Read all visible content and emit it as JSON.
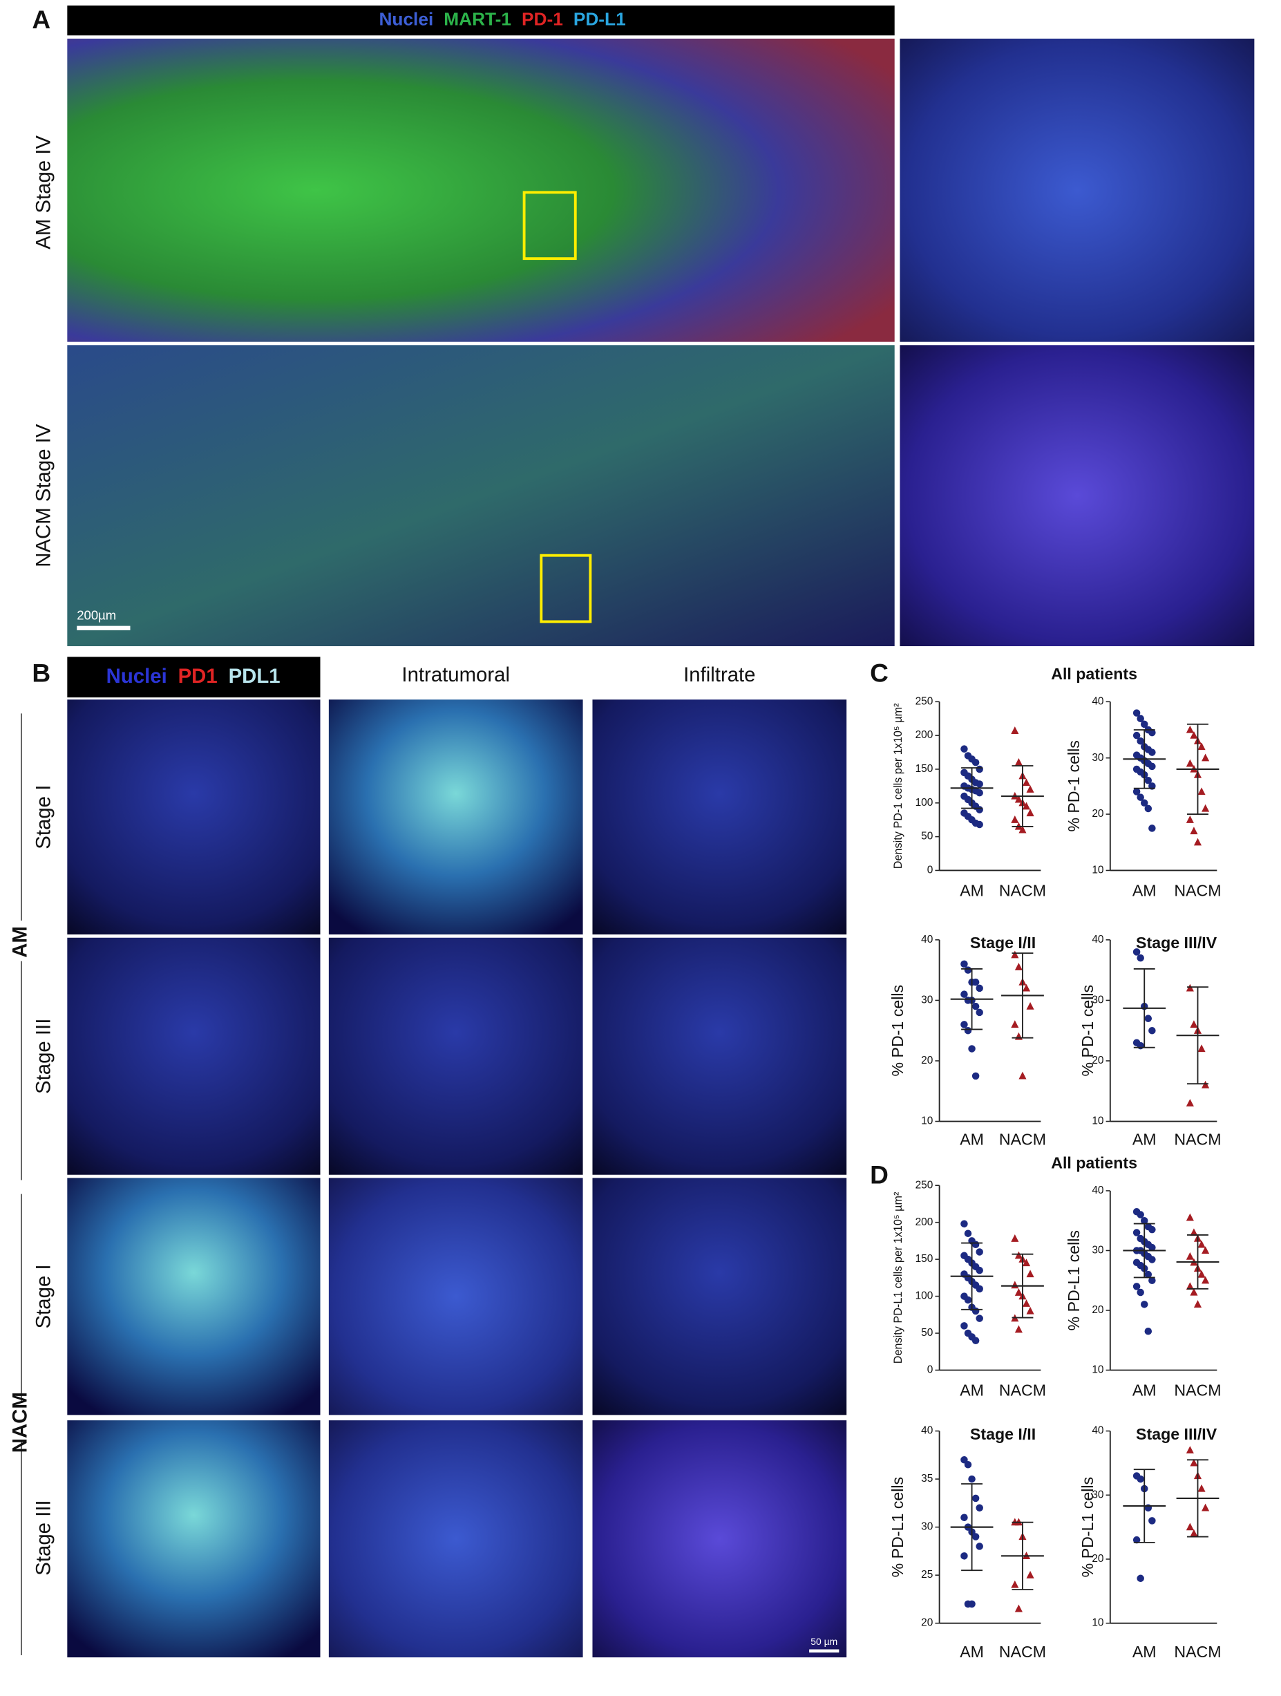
{
  "panel_a": {
    "letter": "A",
    "legend": [
      {
        "text": "Nuclei",
        "color": "#3d5fd6"
      },
      {
        "text": "MART-1",
        "color": "#2cb34a"
      },
      {
        "text": "PD-1",
        "color": "#e02424"
      },
      {
        "text": "PD-L1",
        "color": "#2aa6e0"
      }
    ],
    "rows": [
      "AM Stage IV",
      "NACM Stage IV"
    ],
    "scale_bar": "200µm"
  },
  "panel_b": {
    "letter": "B",
    "legend": [
      {
        "text": "Nuclei",
        "color": "#2b35d6"
      },
      {
        "text": "PD1",
        "color": "#e02424"
      },
      {
        "text": "PDL1",
        "color": "#b8e4ec"
      }
    ],
    "columns": [
      "Intratumoral",
      "Infiltrate"
    ],
    "groups": [
      {
        "label": "AM",
        "rows": [
          "Stage I",
          "Stage III"
        ]
      },
      {
        "label": "NACM",
        "rows": [
          "Stage I",
          "Stage III"
        ]
      }
    ],
    "scale_bar": "50 µm"
  },
  "panel_c": {
    "letter": "C",
    "title": "All patients"
  },
  "panel_d": {
    "letter": "D",
    "title": "All patients"
  },
  "chart_data": [
    {
      "type": "dot",
      "ylabel": "Density PD-1 cells per 1x10⁵ µm²",
      "categories": [
        "AM",
        "NACM"
      ],
      "ylim": [
        0,
        250
      ],
      "yticks": [
        0,
        50,
        100,
        150,
        200,
        250
      ],
      "groups": [
        {
          "color": "#1c2a82",
          "marker": "circle",
          "values": [
            180,
            170,
            165,
            160,
            150,
            145,
            140,
            135,
            130,
            128,
            125,
            122,
            120,
            118,
            115,
            110,
            105,
            100,
            95,
            90,
            85,
            80,
            75,
            70,
            68
          ],
          "mean": 122,
          "sd": 30
        },
        {
          "color": "#a51c22",
          "marker": "triangle",
          "values": [
            207,
            160,
            140,
            130,
            120,
            110,
            105,
            100,
            95,
            85,
            75,
            65,
            60
          ],
          "mean": 110,
          "sd": 45
        }
      ]
    },
    {
      "type": "dot",
      "ylabel": "% PD-1 cells",
      "categories": [
        "AM",
        "NACM"
      ],
      "ylim": [
        10,
        40
      ],
      "yticks": [
        10,
        20,
        30,
        40
      ],
      "groups": [
        {
          "color": "#1c2a82",
          "marker": "circle",
          "values": [
            38,
            37,
            36,
            35,
            34.5,
            34,
            33,
            32,
            31.5,
            31,
            30.5,
            30,
            29.5,
            29,
            28.5,
            28,
            27.5,
            27,
            26,
            25,
            24,
            23,
            22,
            21,
            17.5
          ],
          "mean": 29.8,
          "sd": 5.2
        },
        {
          "color": "#a51c22",
          "marker": "triangle",
          "values": [
            35,
            34,
            33,
            32,
            30,
            29,
            28,
            27,
            24,
            21,
            19,
            17,
            15
          ],
          "mean": 28,
          "sd": 8
        }
      ]
    },
    {
      "type": "dot",
      "title": "Stage I/II",
      "ylabel": "% PD-1 cells",
      "categories": [
        "AM",
        "NACM"
      ],
      "ylim": [
        10,
        40
      ],
      "yticks": [
        10,
        20,
        30,
        40
      ],
      "groups": [
        {
          "color": "#1c2a82",
          "marker": "circle",
          "values": [
            36,
            35,
            33,
            33,
            32,
            31,
            30,
            30,
            29,
            28,
            26,
            25,
            22,
            17.5
          ],
          "mean": 30.2,
          "sd": 5
        },
        {
          "color": "#a51c22",
          "marker": "triangle",
          "values": [
            37.5,
            35.5,
            33,
            32,
            29,
            26,
            24,
            17.5
          ],
          "mean": 30.8,
          "sd": 7
        }
      ]
    },
    {
      "type": "dot",
      "title": "Stage III/IV",
      "ylabel": "% PD-1 cells",
      "categories": [
        "AM",
        "NACM"
      ],
      "ylim": [
        10,
        40
      ],
      "yticks": [
        10,
        20,
        30,
        40
      ],
      "groups": [
        {
          "color": "#1c2a82",
          "marker": "circle",
          "values": [
            38,
            37,
            29,
            27,
            25,
            23,
            22.5
          ],
          "mean": 28.7,
          "sd": 6.5
        },
        {
          "color": "#a51c22",
          "marker": "triangle",
          "values": [
            32,
            26,
            25,
            22,
            16,
            13
          ],
          "mean": 24.2,
          "sd": 8
        }
      ]
    },
    {
      "type": "dot",
      "ylabel": "Density PD-L1 cells per 1x10⁵ µm²",
      "categories": [
        "AM",
        "NACM"
      ],
      "ylim": [
        0,
        250
      ],
      "yticks": [
        0,
        50,
        100,
        150,
        200,
        250
      ],
      "groups": [
        {
          "color": "#1c2a82",
          "marker": "circle",
          "values": [
            198,
            185,
            175,
            170,
            160,
            155,
            150,
            145,
            140,
            135,
            130,
            125,
            120,
            115,
            110,
            100,
            95,
            85,
            80,
            70,
            60,
            50,
            45,
            40
          ],
          "mean": 127,
          "sd": 45
        },
        {
          "color": "#a51c22",
          "marker": "triangle",
          "values": [
            178,
            155,
            150,
            145,
            130,
            115,
            105,
            100,
            90,
            80,
            70,
            55
          ],
          "mean": 114,
          "sd": 43
        }
      ]
    },
    {
      "type": "dot",
      "ylabel": "% PD-L1 cells",
      "categories": [
        "AM",
        "NACM"
      ],
      "ylim": [
        10,
        40
      ],
      "yticks": [
        10,
        20,
        30,
        40
      ],
      "groups": [
        {
          "color": "#1c2a82",
          "marker": "circle",
          "values": [
            36.5,
            36,
            35,
            34,
            33.5,
            33,
            32,
            31.5,
            31,
            30.5,
            30,
            30,
            29.5,
            29,
            28.5,
            28,
            27.5,
            27,
            26,
            25,
            24,
            23,
            21,
            16.5
          ],
          "mean": 30,
          "sd": 4.5
        },
        {
          "color": "#a51c22",
          "marker": "triangle",
          "values": [
            35.5,
            33,
            32,
            31,
            30,
            29,
            28,
            27,
            26,
            25,
            24,
            23,
            21
          ],
          "mean": 28.1,
          "sd": 4.5
        }
      ]
    },
    {
      "type": "dot",
      "title": "Stage I/II",
      "ylabel": "% PD-L1 cells",
      "categories": [
        "AM",
        "NACM"
      ],
      "ylim": [
        20,
        40
      ],
      "yticks": [
        20,
        25,
        30,
        35,
        40
      ],
      "groups": [
        {
          "color": "#1c2a82",
          "marker": "circle",
          "values": [
            37,
            36.5,
            35,
            33,
            32,
            31,
            30,
            29.5,
            29,
            28,
            27,
            22,
            22
          ],
          "mean": 30,
          "sd": 4.5
        },
        {
          "color": "#a51c22",
          "marker": "triangle",
          "values": [
            30.5,
            30.5,
            29,
            27,
            25,
            24,
            21.5
          ],
          "mean": 27,
          "sd": 3.5
        }
      ]
    },
    {
      "type": "dot",
      "title": "Stage III/IV",
      "ylabel": "% PD-L1 cells",
      "categories": [
        "AM",
        "NACM"
      ],
      "ylim": [
        10,
        40
      ],
      "yticks": [
        10,
        20,
        30,
        40
      ],
      "groups": [
        {
          "color": "#1c2a82",
          "marker": "circle",
          "values": [
            33,
            32.5,
            31,
            28,
            26,
            23,
            17
          ],
          "mean": 28.3,
          "sd": 5.7
        },
        {
          "color": "#a51c22",
          "marker": "triangle",
          "values": [
            37,
            35,
            33,
            31,
            28,
            25,
            24
          ],
          "mean": 29.5,
          "sd": 6
        }
      ]
    }
  ]
}
